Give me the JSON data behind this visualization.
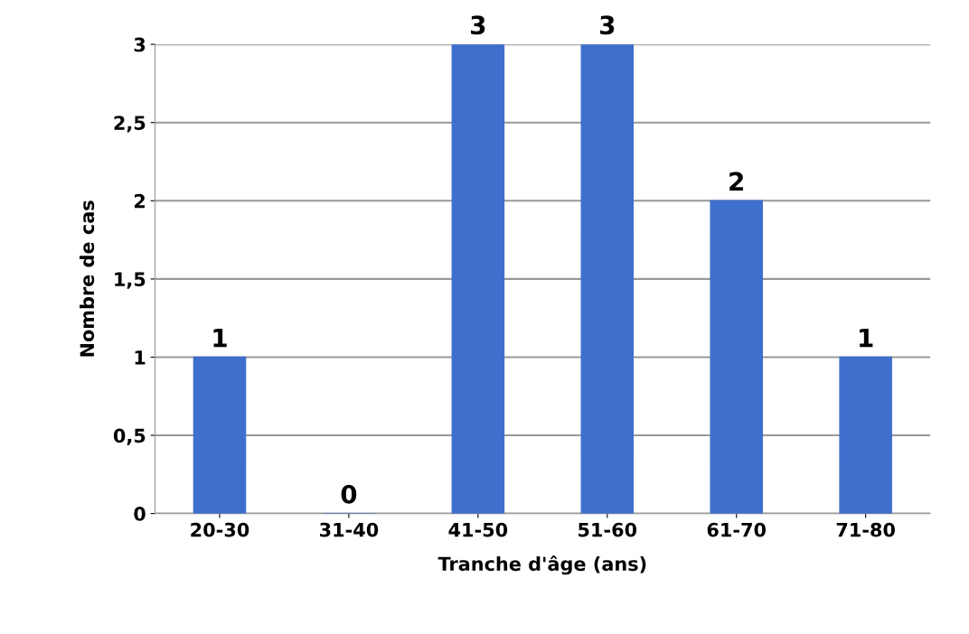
{
  "chart_data": {
    "type": "bar",
    "xlabel": "Tranche d'âge (ans)",
    "ylabel": "Nombre de cas",
    "categories": [
      "20-30",
      "31-40",
      "41-50",
      "51-60",
      "61-70",
      "71-80"
    ],
    "values": [
      1,
      0,
      3,
      3,
      2,
      1
    ],
    "color": "#3f6fcc",
    "ylim": [
      0,
      3
    ],
    "yticks": [
      0,
      {
        "value": 0.5,
        "label": "0,5"
      },
      1,
      {
        "value": 1.5,
        "label": "1,5"
      },
      2,
      {
        "value": 2.5,
        "label": "2,5"
      },
      3
    ],
    "grid": "y",
    "data_labels": true
  }
}
